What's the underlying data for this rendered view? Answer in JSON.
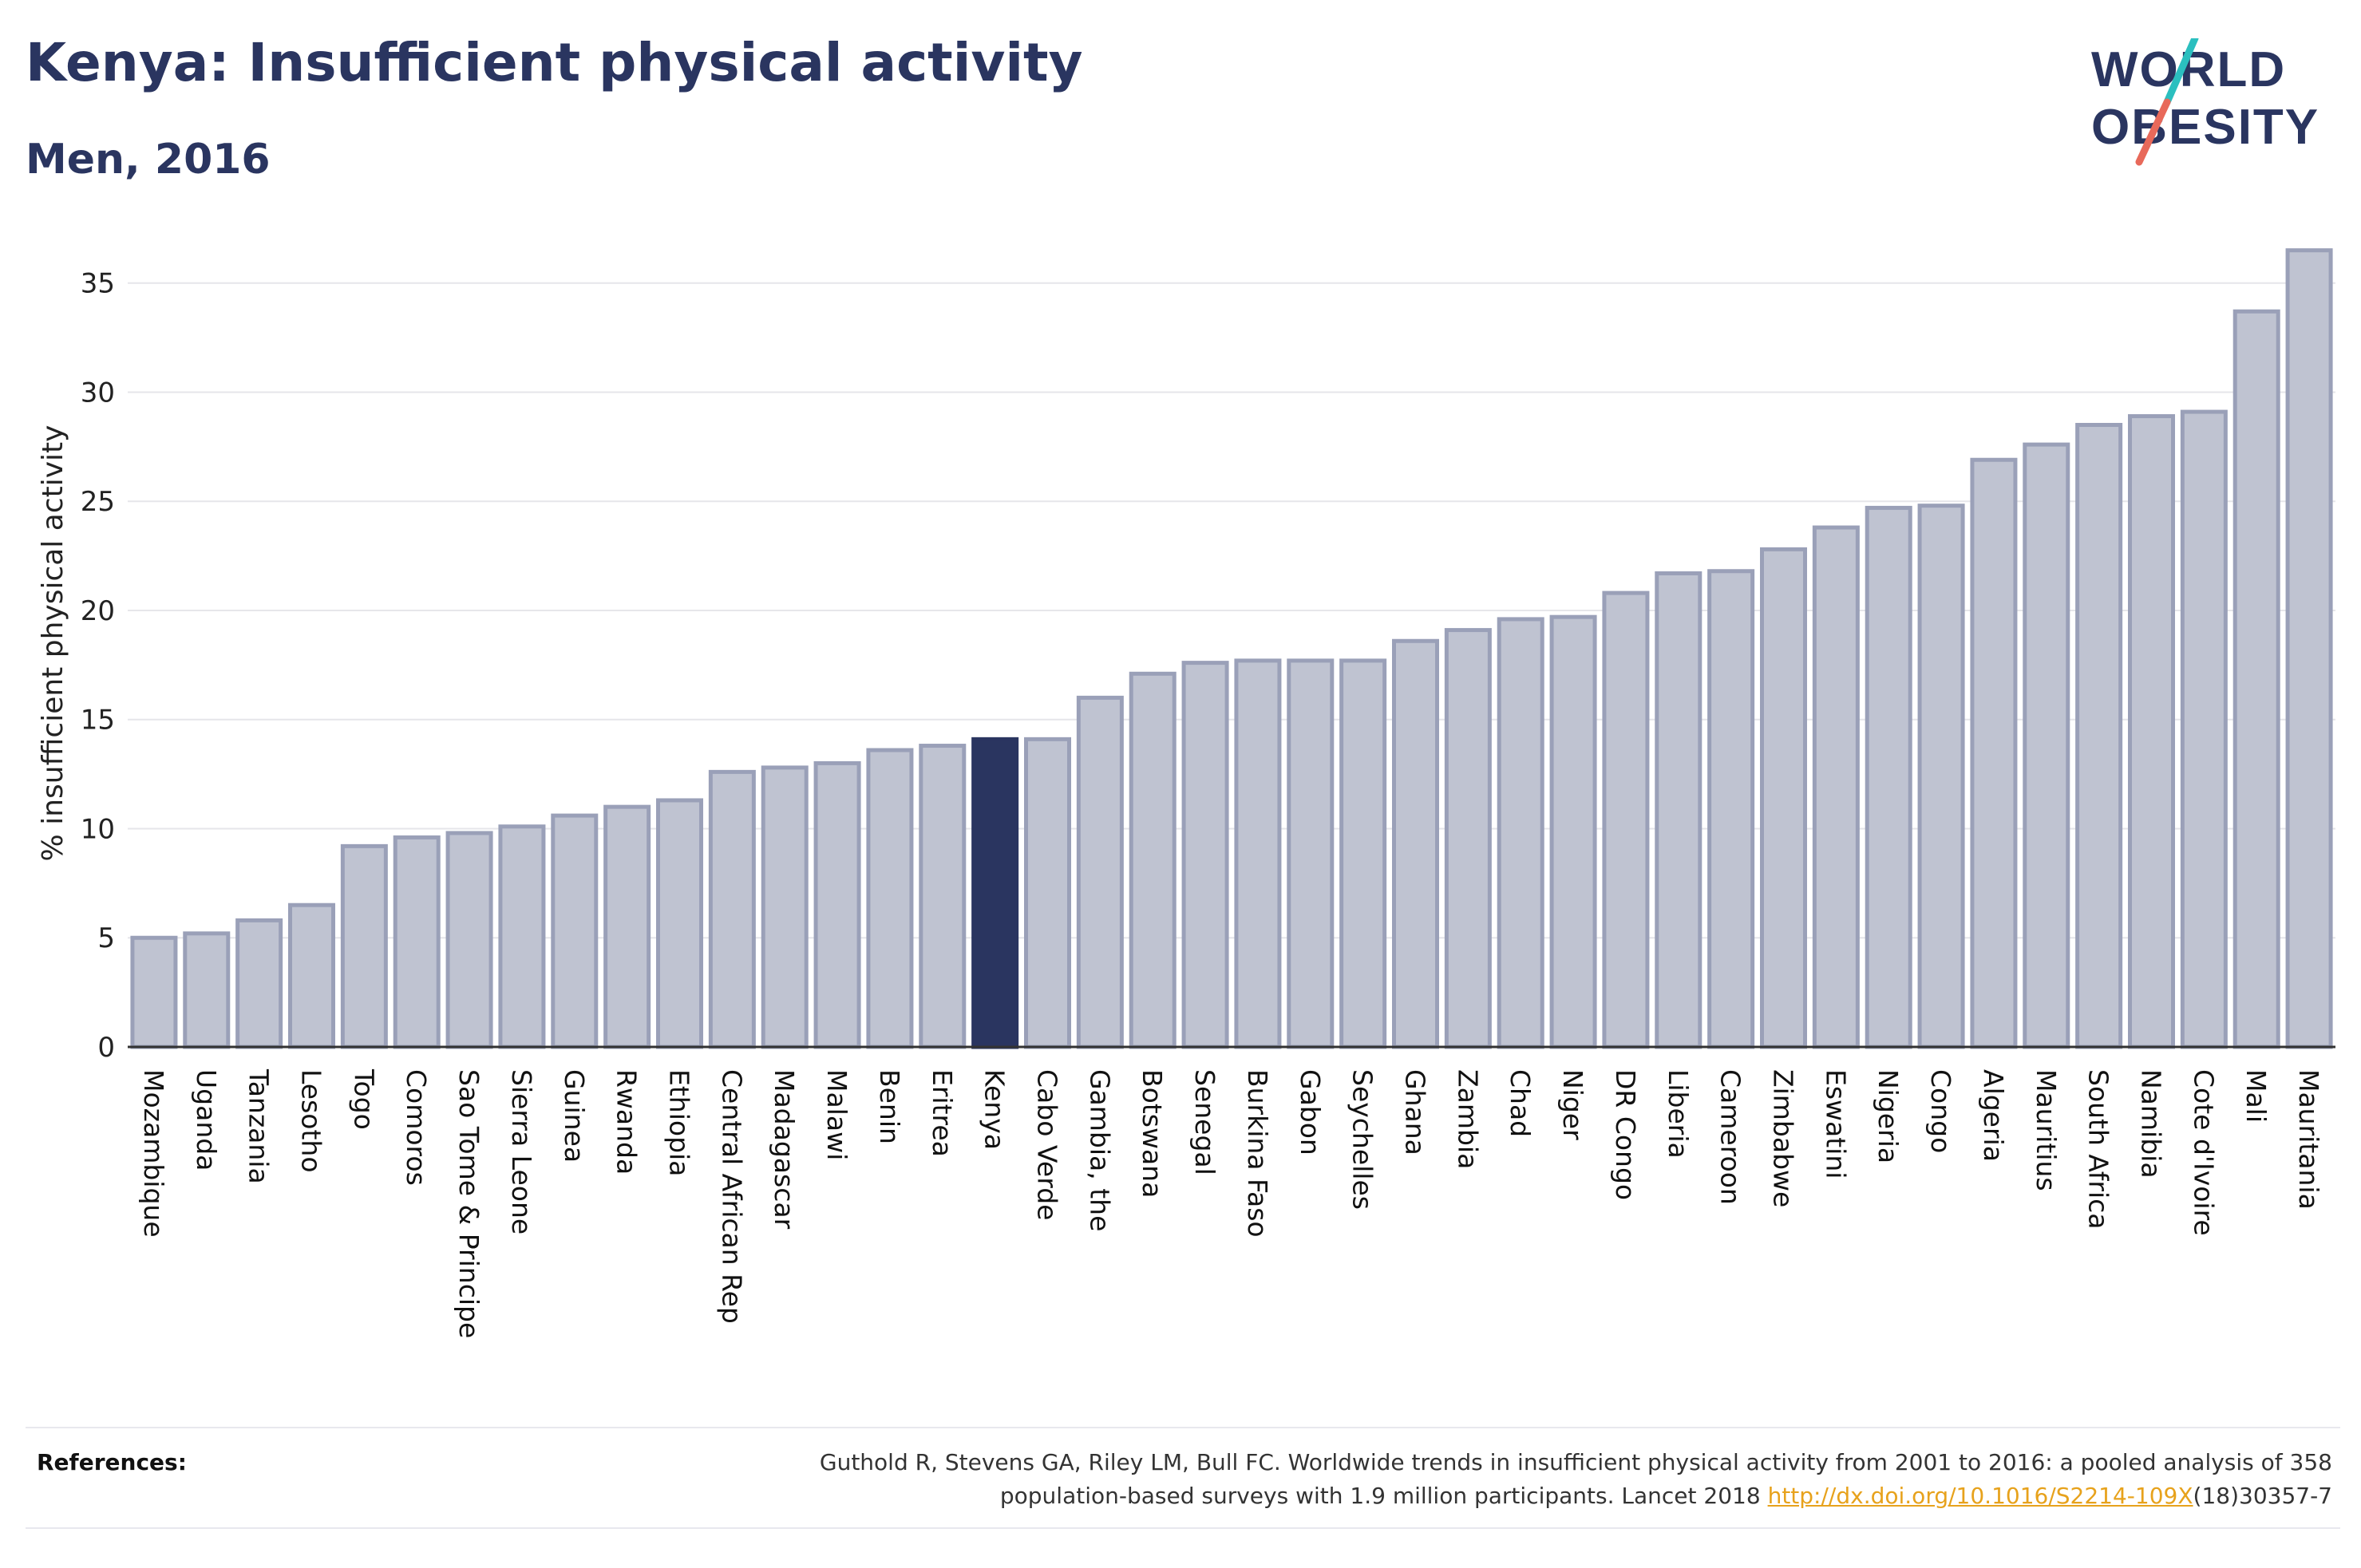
{
  "header": {
    "title": "Kenya: Insufficient physical activity",
    "subtitle": "Men, 2016"
  },
  "logo": {
    "line1": "WORLD",
    "line2": "OBESITY",
    "colors": {
      "text": "#2a3560",
      "slash_top": "#2bbfbf",
      "slash_bottom": "#e8695a"
    }
  },
  "colors": {
    "bar": "#bfc3d1",
    "bar_stroke": "#9aa0b8",
    "highlight": "#2a3560",
    "grid": "#e6e6ea",
    "axis": "#333333"
  },
  "chart_data": {
    "type": "bar",
    "title": "Kenya: Insufficient physical activity",
    "subtitle": "Men, 2016",
    "xlabel": "",
    "ylabel": "% insufficient physical activity",
    "ylim": [
      0,
      37
    ],
    "yticks": [
      0,
      5,
      10,
      15,
      20,
      25,
      30,
      35
    ],
    "grid": true,
    "highlight": "Kenya",
    "categories": [
      "Mozambique",
      "Uganda",
      "Tanzania",
      "Lesotho",
      "Togo",
      "Comoros",
      "Sao Tome & Principe",
      "Sierra Leone",
      "Guinea",
      "Rwanda",
      "Ethiopia",
      "Central African Rep",
      "Madagascar",
      "Malawi",
      "Benin",
      "Eritrea",
      "Kenya",
      "Cabo Verde",
      "Gambia, the",
      "Botswana",
      "Senegal",
      "Burkina Faso",
      "Gabon",
      "Seychelles",
      "Ghana",
      "Zambia",
      "Chad",
      "Niger",
      "DR Congo",
      "Liberia",
      "Cameroon",
      "Zimbabwe",
      "Eswatini",
      "Nigeria",
      "Congo",
      "Algeria",
      "Mauritius",
      "South Africa",
      "Namibia",
      "Cote d'Ivoire",
      "Mali",
      "Mauritania"
    ],
    "values": [
      5.0,
      5.2,
      5.8,
      6.5,
      9.2,
      9.6,
      9.8,
      10.1,
      10.6,
      11.0,
      11.3,
      12.6,
      12.8,
      13.0,
      13.6,
      13.8,
      14.1,
      14.1,
      16.0,
      17.1,
      17.6,
      17.7,
      17.7,
      17.7,
      18.6,
      19.1,
      19.6,
      19.7,
      20.8,
      21.7,
      21.8,
      22.8,
      23.8,
      24.7,
      24.8,
      26.9,
      27.6,
      28.5,
      28.9,
      29.1,
      33.7,
      36.5
    ]
  },
  "footer": {
    "label": "References:",
    "text_line1": "Guthold R, Stevens GA, Riley LM, Bull FC. Worldwide trends in insufficient physical activity from 2001 to 2016: a pooled analysis of 358",
    "text_line2_before": "population-based surveys with 1.9 million participants. Lancet 2018 ",
    "link": "http://dx.doi.org/10.1016/S2214-109X",
    "text_line2_after": "(18)30357-7"
  }
}
